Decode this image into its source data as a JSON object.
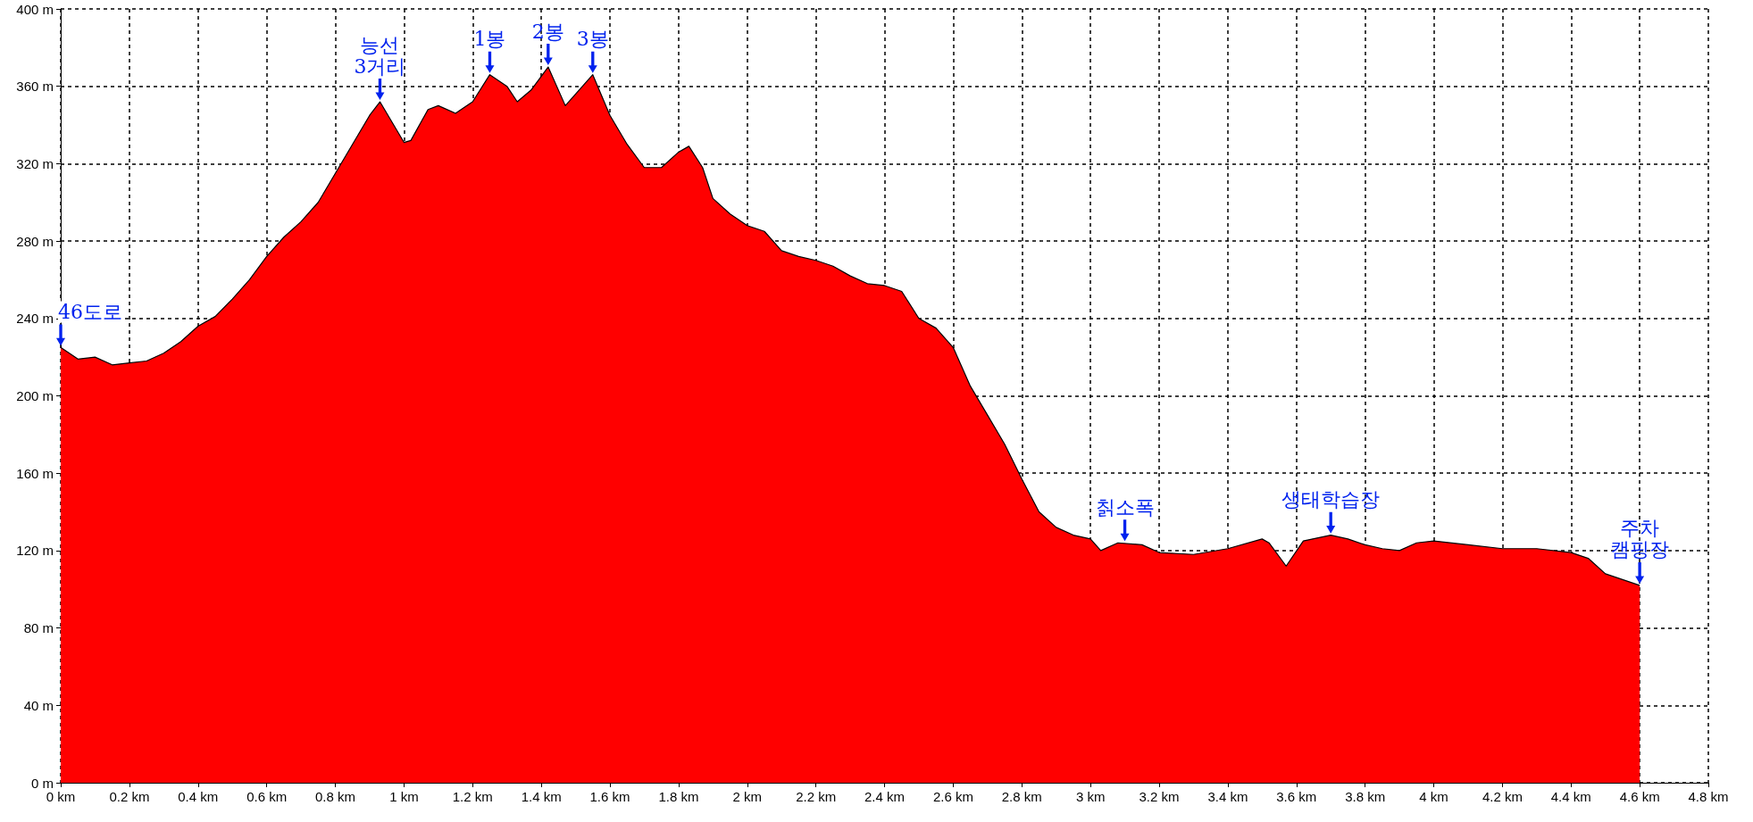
{
  "chart_data": {
    "type": "area",
    "color": "#ff0000",
    "grid": true,
    "xlim": [
      0,
      4.8
    ],
    "ylim": [
      0,
      400
    ],
    "xticks": [
      {
        "value": 0,
        "label": "0 km"
      },
      {
        "value": 0.2,
        "label": "0.2 km"
      },
      {
        "value": 0.4,
        "label": "0.4 km"
      },
      {
        "value": 0.6,
        "label": "0.6 km"
      },
      {
        "value": 0.8,
        "label": "0.8 km"
      },
      {
        "value": 1,
        "label": "1 km"
      },
      {
        "value": 1.2,
        "label": "1.2 km"
      },
      {
        "value": 1.4,
        "label": "1.4 km"
      },
      {
        "value": 1.6,
        "label": "1.6 km"
      },
      {
        "value": 1.8,
        "label": "1.8 km"
      },
      {
        "value": 2,
        "label": "2 km"
      },
      {
        "value": 2.2,
        "label": "2.2 km"
      },
      {
        "value": 2.4,
        "label": "2.4 km"
      },
      {
        "value": 2.6,
        "label": "2.6 km"
      },
      {
        "value": 2.8,
        "label": "2.8 km"
      },
      {
        "value": 3,
        "label": "3 km"
      },
      {
        "value": 3.2,
        "label": "3.2 km"
      },
      {
        "value": 3.4,
        "label": "3.4 km"
      },
      {
        "value": 3.6,
        "label": "3.6 km"
      },
      {
        "value": 3.8,
        "label": "3.8 km"
      },
      {
        "value": 4,
        "label": "4 km"
      },
      {
        "value": 4.2,
        "label": "4.2 km"
      },
      {
        "value": 4.4,
        "label": "4.4 km"
      },
      {
        "value": 4.6,
        "label": "4.6 km"
      },
      {
        "value": 4.8,
        "label": "4.8 km"
      }
    ],
    "yticks": [
      {
        "value": 0,
        "label": "0 m"
      },
      {
        "value": 40,
        "label": "40 m"
      },
      {
        "value": 80,
        "label": "80 m"
      },
      {
        "value": 120,
        "label": "120 m"
      },
      {
        "value": 160,
        "label": "160 m"
      },
      {
        "value": 200,
        "label": "200 m"
      },
      {
        "value": 240,
        "label": "240 m"
      },
      {
        "value": 280,
        "label": "280 m"
      },
      {
        "value": 320,
        "label": "320 m"
      },
      {
        "value": 360,
        "label": "360 m"
      },
      {
        "value": 400,
        "label": "400 m"
      }
    ],
    "x": [
      0,
      0.05,
      0.1,
      0.15,
      0.2,
      0.25,
      0.3,
      0.35,
      0.4,
      0.45,
      0.5,
      0.55,
      0.6,
      0.65,
      0.7,
      0.75,
      0.8,
      0.85,
      0.9,
      0.93,
      0.97,
      1.0,
      1.02,
      1.07,
      1.1,
      1.15,
      1.2,
      1.25,
      1.3,
      1.33,
      1.37,
      1.42,
      1.47,
      1.5,
      1.55,
      1.6,
      1.65,
      1.7,
      1.75,
      1.8,
      1.83,
      1.87,
      1.9,
      1.95,
      2.0,
      2.05,
      2.1,
      2.15,
      2.2,
      2.25,
      2.3,
      2.35,
      2.4,
      2.45,
      2.5,
      2.55,
      2.6,
      2.65,
      2.7,
      2.75,
      2.8,
      2.85,
      2.9,
      2.95,
      3.0,
      3.03,
      3.08,
      3.15,
      3.2,
      3.3,
      3.4,
      3.5,
      3.52,
      3.57,
      3.62,
      3.7,
      3.75,
      3.8,
      3.85,
      3.9,
      3.95,
      4.0,
      4.1,
      4.2,
      4.3,
      4.4,
      4.45,
      4.5,
      4.55,
      4.6
    ],
    "values": [
      225,
      219,
      220,
      216,
      217,
      218,
      222,
      228,
      236,
      241,
      250,
      260,
      272,
      282,
      290,
      300,
      315,
      330,
      345,
      352,
      340,
      331,
      332,
      348,
      350,
      346,
      352,
      366,
      360,
      352,
      358,
      370,
      350,
      356,
      366,
      345,
      330,
      318,
      318,
      326,
      329,
      318,
      302,
      294,
      288,
      285,
      275,
      272,
      270,
      267,
      262,
      258,
      257,
      254,
      240,
      235,
      225,
      205,
      190,
      175,
      157,
      140,
      132,
      128,
      126,
      120,
      124,
      123,
      119,
      118,
      121,
      126,
      124,
      112,
      125,
      128,
      126,
      123,
      121,
      120,
      124,
      125,
      123,
      121,
      121,
      119,
      116,
      108,
      105,
      102
    ],
    "annotations": [
      {
        "text": "46도로",
        "x": 0,
        "y": 225
      },
      {
        "text": "능선\n3거리",
        "x": 0.93,
        "y": 352
      },
      {
        "text": "1봉",
        "x": 1.25,
        "y": 366
      },
      {
        "text": "2봉",
        "x": 1.42,
        "y": 370
      },
      {
        "text": "3봉",
        "x": 1.55,
        "y": 366
      },
      {
        "text": "칡소폭",
        "x": 3.1,
        "y": 124
      },
      {
        "text": "생태학습장",
        "x": 3.7,
        "y": 128
      },
      {
        "text": "주차\n캠핑장",
        "x": 4.6,
        "y": 102
      }
    ]
  }
}
